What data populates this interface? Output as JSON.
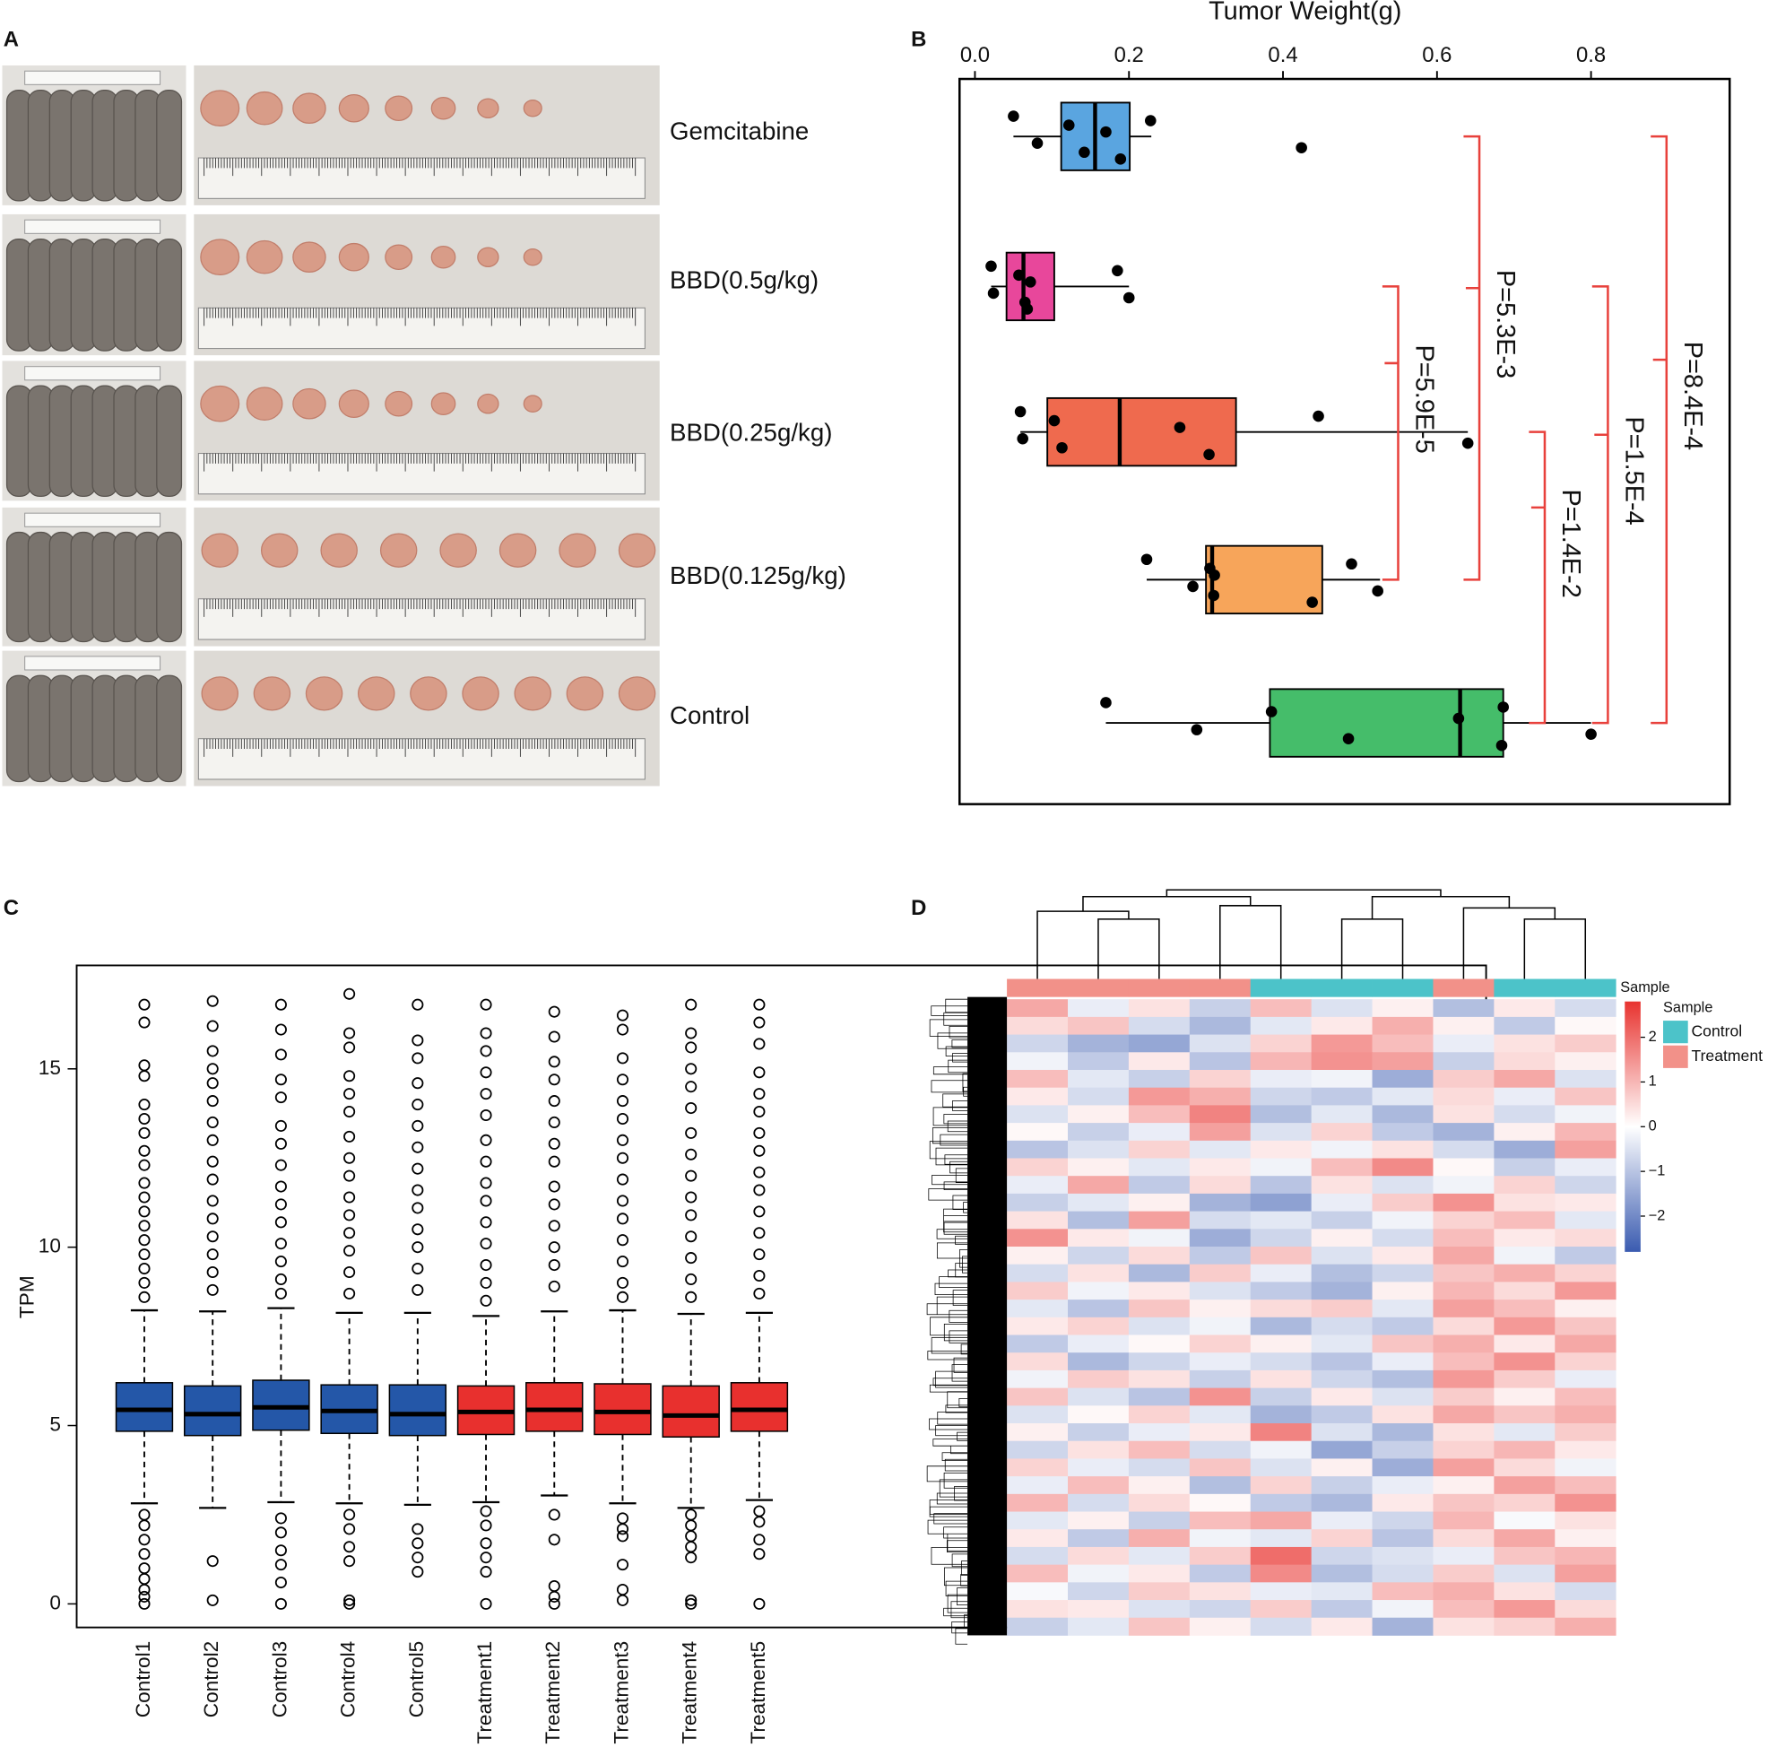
{
  "panel_labels": [
    "A",
    "B",
    "C",
    "D"
  ],
  "photo_panel": {
    "groups": [
      "Gemcitabine",
      "BBD(0.5g/kg)",
      "BBD(0.25g/kg)",
      "BBD(0.125g/kg)",
      "Control"
    ]
  },
  "chart_data": [
    {
      "type": "boxplot",
      "orientation": "horizontal",
      "x_label": "Tumor Weight(g)",
      "xlim": [
        -0.02,
        0.98
      ],
      "xticks": [
        {
          "value": 0,
          "label": "0.0"
        },
        {
          "value": 0.2,
          "label": "0.2"
        },
        {
          "value": 0.4,
          "label": "0.4"
        },
        {
          "value": 0.6,
          "label": "0.6"
        },
        {
          "value": 0.8,
          "label": "0.8"
        }
      ],
      "colors": [
        "#5aa5e0",
        "#e8479b",
        "#ef6a4e",
        "#f7a55a",
        "#45bd6a"
      ],
      "boxes": [
        {
          "whisker_low": 0.05,
          "q1": 0.112,
          "median": 0.156,
          "q3": 0.201,
          "whisker_high": 0.229,
          "points": [
            0.05,
            0.081,
            0.122,
            0.142,
            0.17,
            0.189,
            0.228,
            0.424
          ]
        },
        {
          "whisker_low": 0.021,
          "q1": 0.041,
          "median": 0.063,
          "q3": 0.103,
          "whisker_high": 0.2,
          "points": [
            0.021,
            0.024,
            0.057,
            0.065,
            0.072,
            0.068,
            0.185,
            0.2
          ]
        },
        {
          "whisker_low": 0.059,
          "q1": 0.094,
          "median": 0.188,
          "q3": 0.339,
          "whisker_high": 0.64,
          "points": [
            0.059,
            0.062,
            0.103,
            0.113,
            0.266,
            0.304,
            0.446,
            0.64
          ]
        },
        {
          "whisker_low": 0.223,
          "q1": 0.3,
          "median": 0.308,
          "q3": 0.451,
          "whisker_high": 0.526,
          "points": [
            0.223,
            0.283,
            0.305,
            0.31,
            0.311,
            0.438,
            0.489,
            0.523
          ]
        },
        {
          "whisker_low": 0.17,
          "q1": 0.383,
          "median": 0.63,
          "q3": 0.686,
          "whisker_high": 0.8,
          "points": [
            0.17,
            0.288,
            0.385,
            0.485,
            0.628,
            0.684,
            0.686,
            0.8
          ]
        }
      ],
      "annotations": [
        "P=5.9E-5",
        "P=5.3E-3",
        "P=1.4E-2",
        "P=1.5E-4",
        "P=8.4E-4"
      ],
      "annotation_color": "#e8413c"
    },
    {
      "type": "boxplot",
      "orientation": "vertical",
      "y_label": "TPM",
      "ylim": [
        -0.66,
        17.9
      ],
      "yticks": [
        0,
        5,
        10,
        15
      ],
      "categories": [
        "Control1",
        "Control2",
        "Control3",
        "Control4",
        "Control5",
        "Treatment1",
        "Treatment2",
        "Treatment3",
        "Treatment4",
        "Treatment5"
      ],
      "colors": [
        "#2457a8",
        "#2457a8",
        "#2457a8",
        "#2457a8",
        "#2457a8",
        "#e8302e",
        "#e8302e",
        "#e8302e",
        "#e8302e",
        "#e8302e"
      ],
      "boxes": [
        {
          "whisker_low": 2.82,
          "q1": 4.84,
          "median": 5.44,
          "q3": 6.2,
          "whisker_high": 8.23,
          "outliers": [
            16.8,
            16.3,
            15.1,
            14.8,
            14.0,
            13.6,
            13.2,
            12.7,
            12.3,
            11.8,
            11.4,
            11.0,
            10.6,
            10.2,
            9.8,
            9.4,
            9.0,
            8.6,
            2.5,
            2.2,
            1.8,
            1.4,
            1.0,
            0.7,
            0.4,
            0.2,
            0.0
          ]
        },
        {
          "whisker_low": 2.69,
          "q1": 4.72,
          "median": 5.32,
          "q3": 6.11,
          "whisker_high": 8.2,
          "outliers": [
            16.9,
            16.2,
            15.5,
            15.0,
            14.6,
            14.1,
            13.5,
            13.0,
            12.4,
            11.9,
            11.3,
            10.8,
            10.3,
            9.8,
            9.3,
            8.8,
            1.2,
            0.1
          ]
        },
        {
          "whisker_low": 2.85,
          "q1": 4.87,
          "median": 5.51,
          "q3": 6.27,
          "whisker_high": 8.29,
          "outliers": [
            16.8,
            16.1,
            15.4,
            14.7,
            14.2,
            13.4,
            12.9,
            12.3,
            11.7,
            11.2,
            10.7,
            10.1,
            9.6,
            9.1,
            8.7,
            2.4,
            2.0,
            1.5,
            1.1,
            0.6,
            0.0
          ]
        },
        {
          "whisker_low": 2.82,
          "q1": 4.78,
          "median": 5.41,
          "q3": 6.14,
          "whisker_high": 8.16,
          "outliers": [
            17.1,
            16.0,
            15.6,
            14.8,
            14.3,
            13.8,
            13.1,
            12.5,
            12.0,
            11.4,
            10.9,
            10.4,
            9.9,
            9.3,
            8.7,
            2.5,
            2.1,
            1.6,
            1.2,
            0.1,
            0.0
          ]
        },
        {
          "whisker_low": 2.78,
          "q1": 4.72,
          "median": 5.32,
          "q3": 6.14,
          "whisker_high": 8.16,
          "outliers": [
            16.8,
            15.8,
            15.3,
            14.6,
            14.0,
            13.4,
            12.8,
            12.2,
            11.6,
            11.1,
            10.5,
            10.0,
            9.4,
            8.8,
            2.1,
            1.7,
            1.3,
            0.9
          ]
        },
        {
          "whisker_low": 2.85,
          "q1": 4.75,
          "median": 5.38,
          "q3": 6.11,
          "whisker_high": 8.07,
          "outliers": [
            16.8,
            16.0,
            15.5,
            14.9,
            14.3,
            13.7,
            13.0,
            12.4,
            11.8,
            11.3,
            10.7,
            10.1,
            9.5,
            9.0,
            8.5,
            2.6,
            2.2,
            1.7,
            1.3,
            0.9,
            0.0
          ]
        },
        {
          "whisker_low": 3.04,
          "q1": 4.84,
          "median": 5.44,
          "q3": 6.2,
          "whisker_high": 8.2,
          "outliers": [
            16.6,
            15.9,
            15.2,
            14.7,
            14.1,
            13.5,
            12.9,
            12.4,
            11.7,
            11.2,
            10.6,
            10.0,
            9.5,
            8.9,
            2.5,
            1.8,
            0.5,
            0.2,
            0.0
          ]
        },
        {
          "whisker_low": 2.82,
          "q1": 4.75,
          "median": 5.38,
          "q3": 6.17,
          "whisker_high": 8.23,
          "outliers": [
            16.5,
            16.1,
            15.3,
            14.7,
            14.1,
            13.6,
            13.0,
            12.5,
            11.9,
            11.3,
            10.8,
            10.2,
            9.6,
            9.0,
            8.6,
            2.4,
            2.1,
            1.9,
            1.1,
            0.4,
            0.1
          ]
        },
        {
          "whisker_low": 2.69,
          "q1": 4.68,
          "median": 5.28,
          "q3": 6.11,
          "whisker_high": 8.13,
          "outliers": [
            16.8,
            16.0,
            15.6,
            15.0,
            14.5,
            13.9,
            13.2,
            12.6,
            12.0,
            11.4,
            10.9,
            10.3,
            9.7,
            9.1,
            8.6,
            2.5,
            2.2,
            1.9,
            1.6,
            1.3,
            0.1,
            0.0
          ]
        },
        {
          "whisker_low": 2.91,
          "q1": 4.84,
          "median": 5.44,
          "q3": 6.2,
          "whisker_high": 8.16,
          "outliers": [
            16.8,
            16.3,
            15.7,
            14.9,
            14.3,
            13.8,
            13.2,
            12.7,
            12.1,
            11.6,
            11.0,
            10.4,
            9.8,
            9.2,
            8.7,
            2.6,
            2.3,
            1.8,
            1.4,
            0.0
          ]
        }
      ]
    },
    {
      "type": "heatmap",
      "annotation_label": "Sample",
      "legend_title": "Sample",
      "legend": [
        {
          "name": "Control",
          "color": "#4cc3c9"
        },
        {
          "name": "Treatment",
          "color": "#f29189"
        }
      ],
      "columns": [
        "Treatment",
        "Treatment",
        "Treatment",
        "Treatment",
        "Control",
        "Control",
        "Control",
        "Treatment",
        "Control",
        "Control"
      ],
      "clim": [
        -2.8,
        2.8
      ],
      "cticks": [
        2,
        1,
        0,
        {
          "value": -1,
          "label": "−1"
        },
        {
          "value": -2,
          "label": "−2"
        }
      ],
      "colormap": [
        "#3a5bb0",
        "#ffffff",
        "#e8332f"
      ],
      "values": [
        [
          1.2,
          -0.3,
          0.4,
          -0.8,
          0.9,
          -0.5,
          0.2,
          -1.1,
          0.3,
          -0.6
        ],
        [
          0.5,
          0.8,
          -0.6,
          -1.2,
          -0.4,
          0.3,
          1.1,
          0.2,
          -0.9,
          0.1
        ],
        [
          -0.7,
          -1.3,
          -1.5,
          -0.5,
          0.6,
          1.4,
          0.9,
          -0.3,
          0.4,
          0.7
        ],
        [
          -0.2,
          -0.9,
          0.3,
          -1.0,
          1.0,
          1.5,
          1.3,
          -0.8,
          0.5,
          0.2
        ],
        [
          0.9,
          -0.4,
          -0.8,
          0.6,
          -0.3,
          -0.2,
          -1.4,
          0.7,
          1.2,
          -0.5
        ],
        [
          0.3,
          -0.6,
          1.4,
          1.1,
          -0.7,
          -0.9,
          -0.4,
          0.5,
          -0.3,
          0.8
        ],
        [
          -0.5,
          0.2,
          0.9,
          1.7,
          -1.1,
          -0.4,
          -1.2,
          0.4,
          -0.6,
          -0.2
        ],
        [
          0.1,
          -0.8,
          -0.3,
          1.3,
          -0.5,
          0.6,
          -0.9,
          -1.3,
          0.2,
          1.0
        ],
        [
          -1.0,
          -0.5,
          0.6,
          -0.4,
          0.3,
          -0.2,
          0.4,
          -0.6,
          -1.4,
          1.3
        ],
        [
          0.6,
          0.2,
          -0.4,
          0.3,
          -0.2,
          0.9,
          1.6,
          0.1,
          -0.8,
          -0.3
        ],
        [
          -0.3,
          1.2,
          -0.9,
          0.5,
          -1.0,
          0.4,
          -0.5,
          -0.2,
          0.6,
          -0.7
        ],
        [
          -0.8,
          -0.4,
          0.2,
          -1.3,
          -1.6,
          -0.3,
          0.7,
          1.5,
          0.4,
          0.3
        ],
        [
          0.4,
          -1.1,
          1.3,
          -0.6,
          -0.4,
          -0.8,
          -0.2,
          0.6,
          0.9,
          -0.4
        ],
        [
          1.5,
          0.3,
          -0.2,
          -1.4,
          -0.7,
          0.2,
          -0.6,
          0.9,
          0.3,
          0.5
        ],
        [
          0.2,
          -0.7,
          0.5,
          -0.9,
          0.8,
          -0.5,
          0.3,
          1.2,
          -0.2,
          -0.9
        ],
        [
          -0.6,
          0.4,
          -1.2,
          0.7,
          -0.3,
          -1.1,
          -0.7,
          0.8,
          1.1,
          0.6
        ],
        [
          0.7,
          -0.2,
          0.3,
          -0.5,
          -0.9,
          -1.3,
          0.2,
          1.0,
          0.5,
          1.4
        ],
        [
          -0.4,
          -1.0,
          0.8,
          0.2,
          0.5,
          0.7,
          -0.4,
          1.3,
          0.9,
          0.2
        ],
        [
          0.3,
          0.6,
          -0.5,
          -0.2,
          -1.2,
          -0.6,
          -0.9,
          0.5,
          1.4,
          0.8
        ],
        [
          -0.9,
          -0.3,
          0.1,
          0.6,
          0.2,
          -0.4,
          0.8,
          1.1,
          0.3,
          1.2
        ],
        [
          0.5,
          -1.2,
          -0.7,
          -0.3,
          -0.6,
          -1.0,
          -0.3,
          0.9,
          1.5,
          0.6
        ],
        [
          -0.2,
          0.7,
          0.4,
          -0.8,
          0.4,
          -0.7,
          -1.1,
          1.4,
          0.7,
          -0.3
        ],
        [
          0.8,
          -0.5,
          -1.0,
          1.5,
          -0.8,
          0.3,
          -0.5,
          0.7,
          0.2,
          0.9
        ],
        [
          -0.5,
          0.1,
          0.6,
          -0.4,
          -1.3,
          -0.9,
          0.4,
          1.2,
          0.8,
          1.1
        ],
        [
          0.2,
          -0.8,
          -0.3,
          0.3,
          1.7,
          -0.5,
          -1.2,
          0.4,
          -0.4,
          0.7
        ],
        [
          -0.7,
          0.4,
          0.9,
          -0.6,
          -0.2,
          -1.5,
          -0.8,
          0.6,
          1.0,
          0.3
        ],
        [
          0.6,
          -0.3,
          -0.6,
          0.8,
          -0.5,
          0.2,
          -1.4,
          1.3,
          0.5,
          -0.2
        ],
        [
          -0.3,
          0.9,
          0.2,
          -1.1,
          0.6,
          -0.8,
          -0.3,
          0.2,
          1.3,
          0.9
        ],
        [
          1.0,
          -0.6,
          0.5,
          0.1,
          -0.9,
          -1.2,
          0.3,
          0.8,
          0.6,
          1.5
        ],
        [
          -0.4,
          0.2,
          -0.8,
          0.9,
          1.2,
          -0.3,
          -0.7,
          1.0,
          -0.1,
          0.4
        ],
        [
          0.3,
          -0.9,
          1.1,
          -0.2,
          -0.4,
          0.6,
          -1.0,
          0.5,
          1.2,
          0.2
        ],
        [
          -0.6,
          0.5,
          -0.4,
          0.7,
          2.0,
          -0.7,
          -0.5,
          -0.3,
          0.8,
          1.0
        ],
        [
          0.9,
          -0.2,
          0.3,
          -0.9,
          1.6,
          -1.1,
          -0.6,
          0.7,
          -0.5,
          1.3
        ],
        [
          -0.1,
          -0.7,
          0.7,
          0.4,
          -0.3,
          -0.4,
          0.9,
          1.1,
          0.4,
          -0.6
        ],
        [
          0.4,
          0.3,
          -0.5,
          -0.7,
          0.7,
          -0.9,
          -0.2,
          0.9,
          1.4,
          0.5
        ],
        [
          -0.8,
          -0.4,
          0.8,
          0.2,
          -0.6,
          0.3,
          -1.3,
          0.4,
          0.6,
          1.1
        ]
      ]
    }
  ]
}
